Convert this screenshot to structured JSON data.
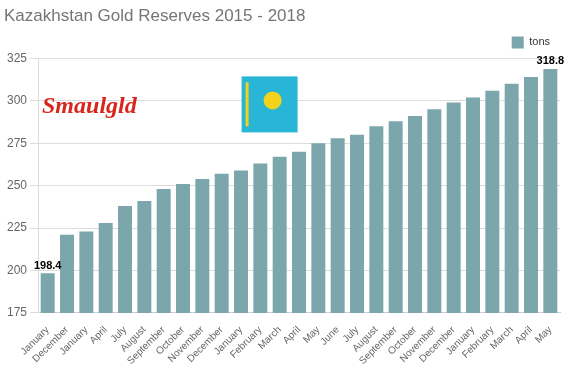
{
  "chart_data": {
    "type": "bar",
    "title": "Kazakhstan Gold Reserves 2015 - 2018",
    "annotations": [
      "Smaulgld"
    ],
    "categories": [
      "January",
      "December",
      "January",
      "April",
      "July",
      "August",
      "September",
      "October",
      "November",
      "December",
      "January",
      "February",
      "March",
      "April",
      "May",
      "June",
      "July",
      "August",
      "September",
      "October",
      "November",
      "December",
      "January",
      "February",
      "March",
      "April",
      "May"
    ],
    "series": [
      {
        "name": "tons",
        "color": "#7ba6ab",
        "values": [
          198.4,
          221,
          223,
          228,
          238,
          241,
          248,
          251,
          254,
          257,
          259,
          263,
          267,
          270,
          275,
          278,
          280,
          285,
          288,
          291,
          295,
          299,
          302,
          306,
          310,
          314,
          318.8
        ],
        "value_labels": [
          "198.4",
          null,
          null,
          null,
          null,
          null,
          null,
          null,
          null,
          null,
          null,
          null,
          null,
          null,
          null,
          null,
          null,
          null,
          null,
          null,
          null,
          null,
          null,
          null,
          null,
          null,
          "318.8"
        ]
      }
    ],
    "ylim": [
      175,
      325
    ],
    "yticks": [
      175,
      200,
      225,
      250,
      275,
      300,
      325
    ],
    "grid": true,
    "legend": "top-right",
    "data_labels": true
  }
}
